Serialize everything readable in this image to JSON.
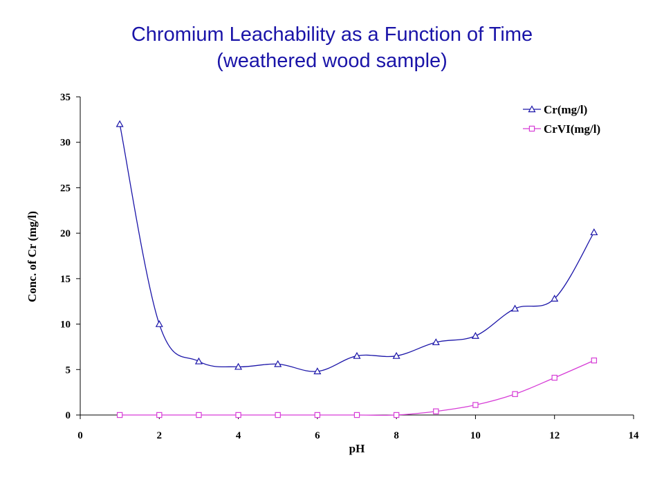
{
  "title": {
    "line1": "Chromium Leachability as a Function of Time",
    "line2": "(weathered wood sample)"
  },
  "chart_data": {
    "type": "line",
    "xlabel": "pH",
    "ylabel": "Conc. of Cr (mg/l)",
    "xlim": [
      0,
      14
    ],
    "ylim": [
      0,
      35
    ],
    "xticks": [
      0,
      2,
      4,
      6,
      8,
      10,
      12,
      14
    ],
    "yticks": [
      0,
      5,
      10,
      15,
      20,
      25,
      30,
      35
    ],
    "grid": false,
    "legend_position": "top-right",
    "x": [
      1,
      2,
      3,
      4,
      5,
      6,
      7,
      8,
      9,
      10,
      11,
      12,
      13
    ],
    "series": [
      {
        "name": "Cr(mg/l)",
        "color": "#1a14a8",
        "marker": "triangle",
        "values": [
          32,
          10,
          5.9,
          5.3,
          5.6,
          4.8,
          6.5,
          6.5,
          8.0,
          8.7,
          11.7,
          12.8,
          20.1
        ]
      },
      {
        "name": "CrVI(mg/l)",
        "color": "#d63cd6",
        "marker": "square",
        "values": [
          0,
          0,
          0,
          0,
          0,
          0,
          0,
          0,
          0.4,
          1.1,
          2.3,
          4.1,
          6.0
        ]
      }
    ]
  }
}
